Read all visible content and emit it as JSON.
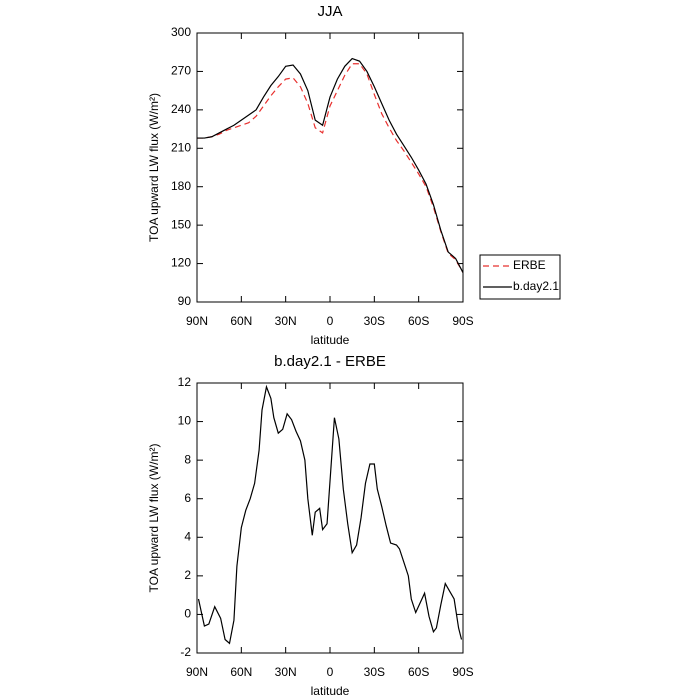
{
  "chart_data": [
    {
      "type": "line",
      "title": "JJA",
      "x_label": "latitude",
      "y_label": "TOA upward LW flux (W/m²)",
      "x": [
        90,
        85,
        80,
        75,
        70,
        65,
        60,
        55,
        50,
        45,
        40,
        35,
        30,
        25,
        20,
        15,
        10,
        5,
        0,
        -5,
        -10,
        -15,
        -20,
        -25,
        -30,
        -35,
        -40,
        -45,
        -50,
        -55,
        -60,
        -65,
        -70,
        -75,
        -80,
        -85,
        -90
      ],
      "series": [
        {
          "name": "ERBE",
          "color": "#e8302e",
          "dash": true,
          "values": [
            218,
            218,
            219,
            221,
            224,
            226,
            228,
            230,
            235,
            243,
            251,
            258,
            264,
            265,
            258,
            245,
            226,
            222,
            243,
            255,
            267,
            276,
            276,
            268,
            252,
            237,
            226,
            216,
            208,
            199,
            190,
            180,
            164,
            145,
            128,
            123,
            113
          ]
        },
        {
          "name": "b.day2.1",
          "color": "#000000",
          "dash": false,
          "values": [
            218,
            218,
            219,
            222,
            225,
            228,
            232,
            236,
            240,
            250,
            259,
            266,
            274,
            275,
            268,
            255,
            232,
            228,
            250,
            264,
            274,
            280,
            278,
            270,
            258,
            245,
            232,
            221,
            212,
            203,
            193,
            182,
            166,
            146,
            129,
            124,
            113
          ]
        }
      ],
      "xlim": [
        90,
        -90
      ],
      "xticks": [
        {
          "value": 90,
          "label": "90N"
        },
        {
          "value": 60,
          "label": "60N"
        },
        {
          "value": 30,
          "label": "30N"
        },
        0,
        {
          "value": -30,
          "label": "30S"
        },
        {
          "value": -60,
          "label": "60S"
        },
        {
          "value": -90,
          "label": "90S"
        }
      ],
      "ylim": [
        90,
        300
      ],
      "yticks": [
        90,
        120,
        150,
        180,
        210,
        240,
        270,
        300
      ],
      "legend": "outside-right"
    },
    {
      "type": "line",
      "title": "b.day2.1 - ERBE",
      "x_label": "latitude",
      "y_label": "TOA upward LW flux (W/m²)",
      "x": [
        89,
        85,
        82,
        78,
        74,
        71,
        68,
        65,
        63,
        60,
        57,
        54,
        51,
        48,
        46,
        43,
        40,
        38,
        35,
        32,
        29,
        26,
        23,
        20,
        17,
        15,
        12,
        10,
        7,
        5,
        2,
        -3,
        -6,
        -9,
        -12,
        -15,
        -18,
        -21,
        -24,
        -27,
        -30,
        -32,
        -35,
        -38,
        -41,
        -45,
        -47,
        -50,
        -53,
        -55,
        -58,
        -61,
        -64,
        -67,
        -70,
        -72,
        -75,
        -78,
        -81,
        -84,
        -87,
        -89
      ],
      "series": [
        {
          "color": "#000000",
          "dash": false,
          "values": [
            0.8,
            -0.6,
            -0.5,
            0.4,
            -0.2,
            -1.3,
            -1.5,
            -0.3,
            2.5,
            4.5,
            5.4,
            6.0,
            6.8,
            8.5,
            10.6,
            11.8,
            11.2,
            10.2,
            9.4,
            9.6,
            10.4,
            10.1,
            9.5,
            9.0,
            8.0,
            6.0,
            4.1,
            5.3,
            5.5,
            4.4,
            4.7,
            10.2,
            9.1,
            6.5,
            4.7,
            3.2,
            3.6,
            5.0,
            6.8,
            7.8,
            7.8,
            6.5,
            5.6,
            4.6,
            3.7,
            3.6,
            3.4,
            2.7,
            2.0,
            0.8,
            0.1,
            0.6,
            1.1,
            -0.1,
            -0.9,
            -0.7,
            0.5,
            1.6,
            1.2,
            0.8,
            -0.7,
            -1.3
          ]
        }
      ],
      "xlim": [
        90,
        -90
      ],
      "xticks": [
        {
          "value": 90,
          "label": "90N"
        },
        {
          "value": 60,
          "label": "60N"
        },
        {
          "value": 30,
          "label": "30N"
        },
        0,
        {
          "value": -30,
          "label": "30S"
        },
        {
          "value": -60,
          "label": "60S"
        },
        {
          "value": -90,
          "label": "90S"
        }
      ],
      "ylim": [
        -2,
        12
      ],
      "yticks": [
        -2,
        0,
        2,
        4,
        6,
        8,
        10,
        12
      ]
    }
  ]
}
